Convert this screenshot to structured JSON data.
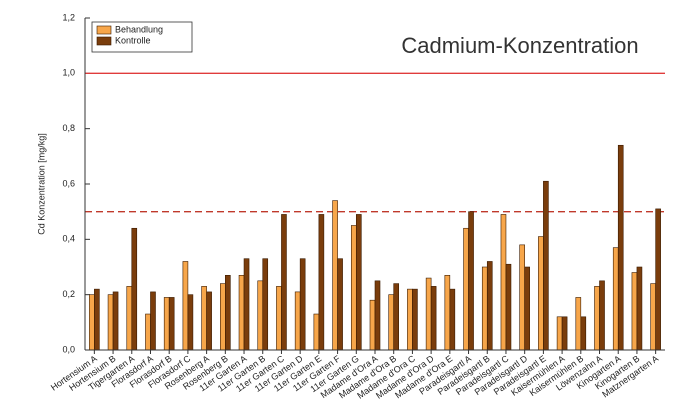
{
  "chart_data": {
    "type": "bar",
    "title": "Cadmium-Konzentration",
    "y_label": "Cd Konzentration [mg/kg]",
    "categories": [
      "Hortensium A",
      "Hortensium B",
      "Tigergarten A",
      "Florasdorf A",
      "Florasdorf B",
      "Florasdorf C",
      "Rosenberg A",
      "Rosenberg B",
      "11er Garten A",
      "11er Garten B",
      "11er Garten C",
      "11er Garten D",
      "11er Garten E",
      "11er Garten F",
      "11er Garten G",
      "Madame d'Ora A",
      "Madame d'Ora B",
      "Madame d'Ora C",
      "Madame d'Ora D",
      "Madame d'Ora E",
      "Paradeisgartl A",
      "Paradeisgartl B",
      "Paradeisgartl C",
      "Paradeisgartl D",
      "Paradeisgartl E",
      "Kaisermühlen A",
      "Kaisermühlen B",
      "Löwenzahn A",
      "Kinogarten A",
      "Kinogarten B",
      "Matznergarten A"
    ],
    "series": [
      {
        "name": "Behandlung",
        "color": "#f7a64a",
        "values": [
          0.2,
          0.2,
          0.23,
          0.13,
          0.19,
          0.32,
          0.23,
          0.24,
          0.27,
          0.25,
          0.23,
          0.21,
          0.13,
          0.54,
          0.45,
          0.18,
          0.2,
          0.22,
          0.26,
          0.27,
          0.44,
          0.3,
          0.49,
          0.38,
          0.41,
          0.12,
          0.19,
          0.23,
          0.37,
          0.28,
          0.24
        ]
      },
      {
        "name": "Kontrolle",
        "color": "#7a3d0c",
        "values": [
          0.22,
          0.21,
          0.44,
          0.21,
          0.19,
          0.2,
          0.21,
          0.27,
          0.33,
          0.33,
          0.49,
          0.33,
          0.49,
          0.33,
          0.49,
          0.25,
          0.24,
          0.22,
          0.23,
          0.22,
          0.5,
          0.32,
          0.31,
          0.3,
          0.61,
          0.12,
          0.12,
          0.25,
          0.74,
          0.3,
          0.51
        ]
      }
    ],
    "ylim": [
      0,
      1.2
    ],
    "yticks": [
      {
        "value": 0,
        "label": "0,0"
      },
      {
        "value": 0.2,
        "label": "0,2"
      },
      {
        "value": 0.4,
        "label": "0,4"
      },
      {
        "value": 0.6,
        "label": "0,6"
      },
      {
        "value": 0.8,
        "label": "0,8"
      },
      {
        "value": 1.0,
        "label": "1,0"
      },
      {
        "value": 1.2,
        "label": "1,2"
      }
    ],
    "reference_lines": [
      {
        "value": 1.0,
        "color": "#e03c3c",
        "style": "solid"
      },
      {
        "value": 0.5,
        "color": "#c0392b",
        "style": "dashed"
      }
    ],
    "legend": "upper left"
  }
}
